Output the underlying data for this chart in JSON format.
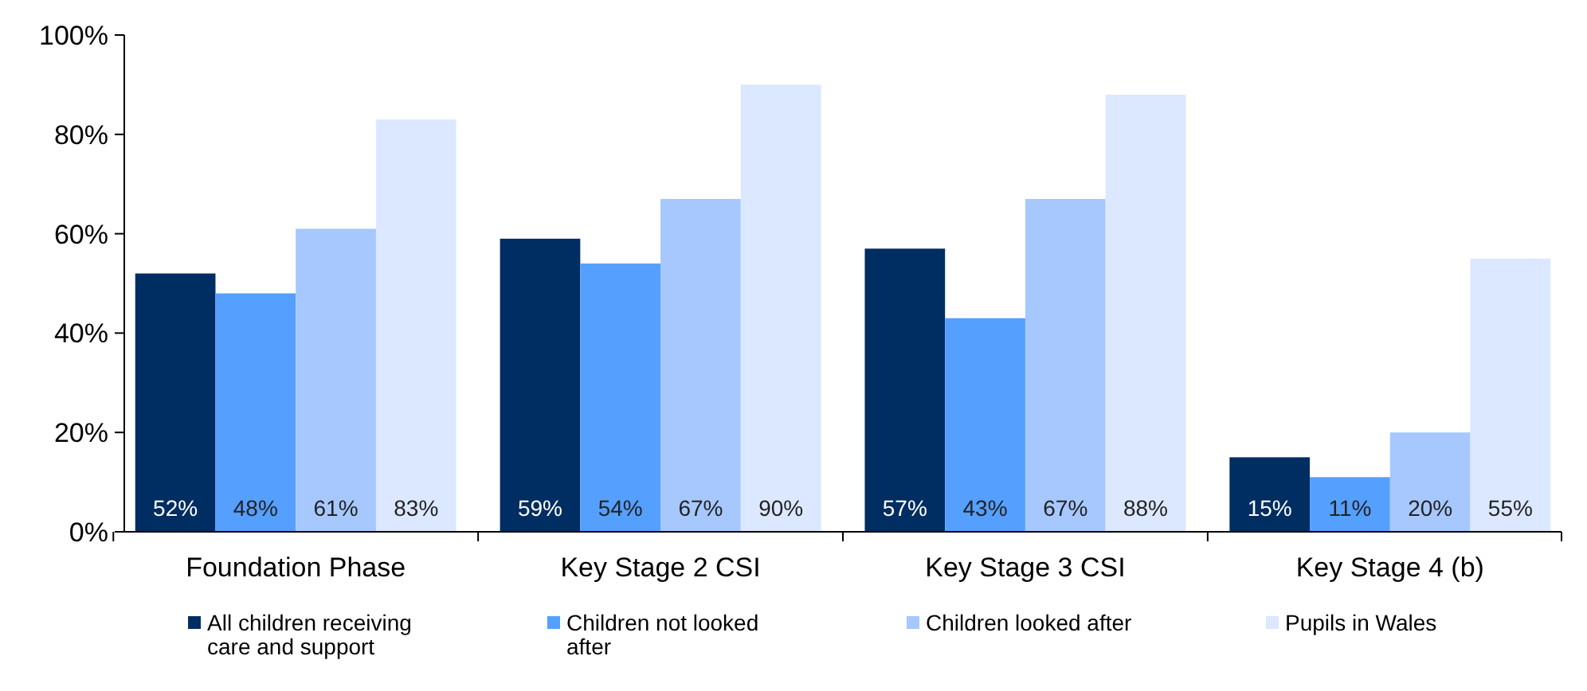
{
  "chart_data": {
    "type": "bar",
    "categories": [
      "Foundation Phase",
      "Key Stage 2 CSI",
      "Key Stage 3 CSI",
      "Key Stage 4 (b)"
    ],
    "series": [
      {
        "name": "All children receiving care and support",
        "color": "#002d62",
        "values": [
          52,
          59,
          57,
          15
        ]
      },
      {
        "name": "Children not looked after",
        "color": "#559fff",
        "values": [
          48,
          54,
          43,
          11
        ]
      },
      {
        "name": "Children looked after",
        "color": "#a6c8ff",
        "values": [
          61,
          67,
          67,
          20
        ]
      },
      {
        "name": "Pupils in Wales",
        "color": "#dbe8ff",
        "values": [
          83,
          90,
          88,
          55
        ]
      }
    ],
    "ylim": [
      0,
      100
    ],
    "yticks": [
      {
        "value": 0,
        "label": "0%"
      },
      {
        "value": 20,
        "label": "20%"
      },
      {
        "value": 40,
        "label": "40%"
      },
      {
        "value": 60,
        "label": "60%"
      },
      {
        "value": 80,
        "label": "80%"
      },
      {
        "value": 100,
        "label": "100%"
      }
    ],
    "value_labels": [
      [
        "52%",
        "59%",
        "57%",
        "15%"
      ],
      [
        "48%",
        "54%",
        "43%",
        "11%"
      ],
      [
        "61%",
        "67%",
        "67%",
        "20%"
      ],
      [
        "83%",
        "90%",
        "88%",
        "55%"
      ]
    ],
    "legend": "bottom",
    "grid": false
  }
}
